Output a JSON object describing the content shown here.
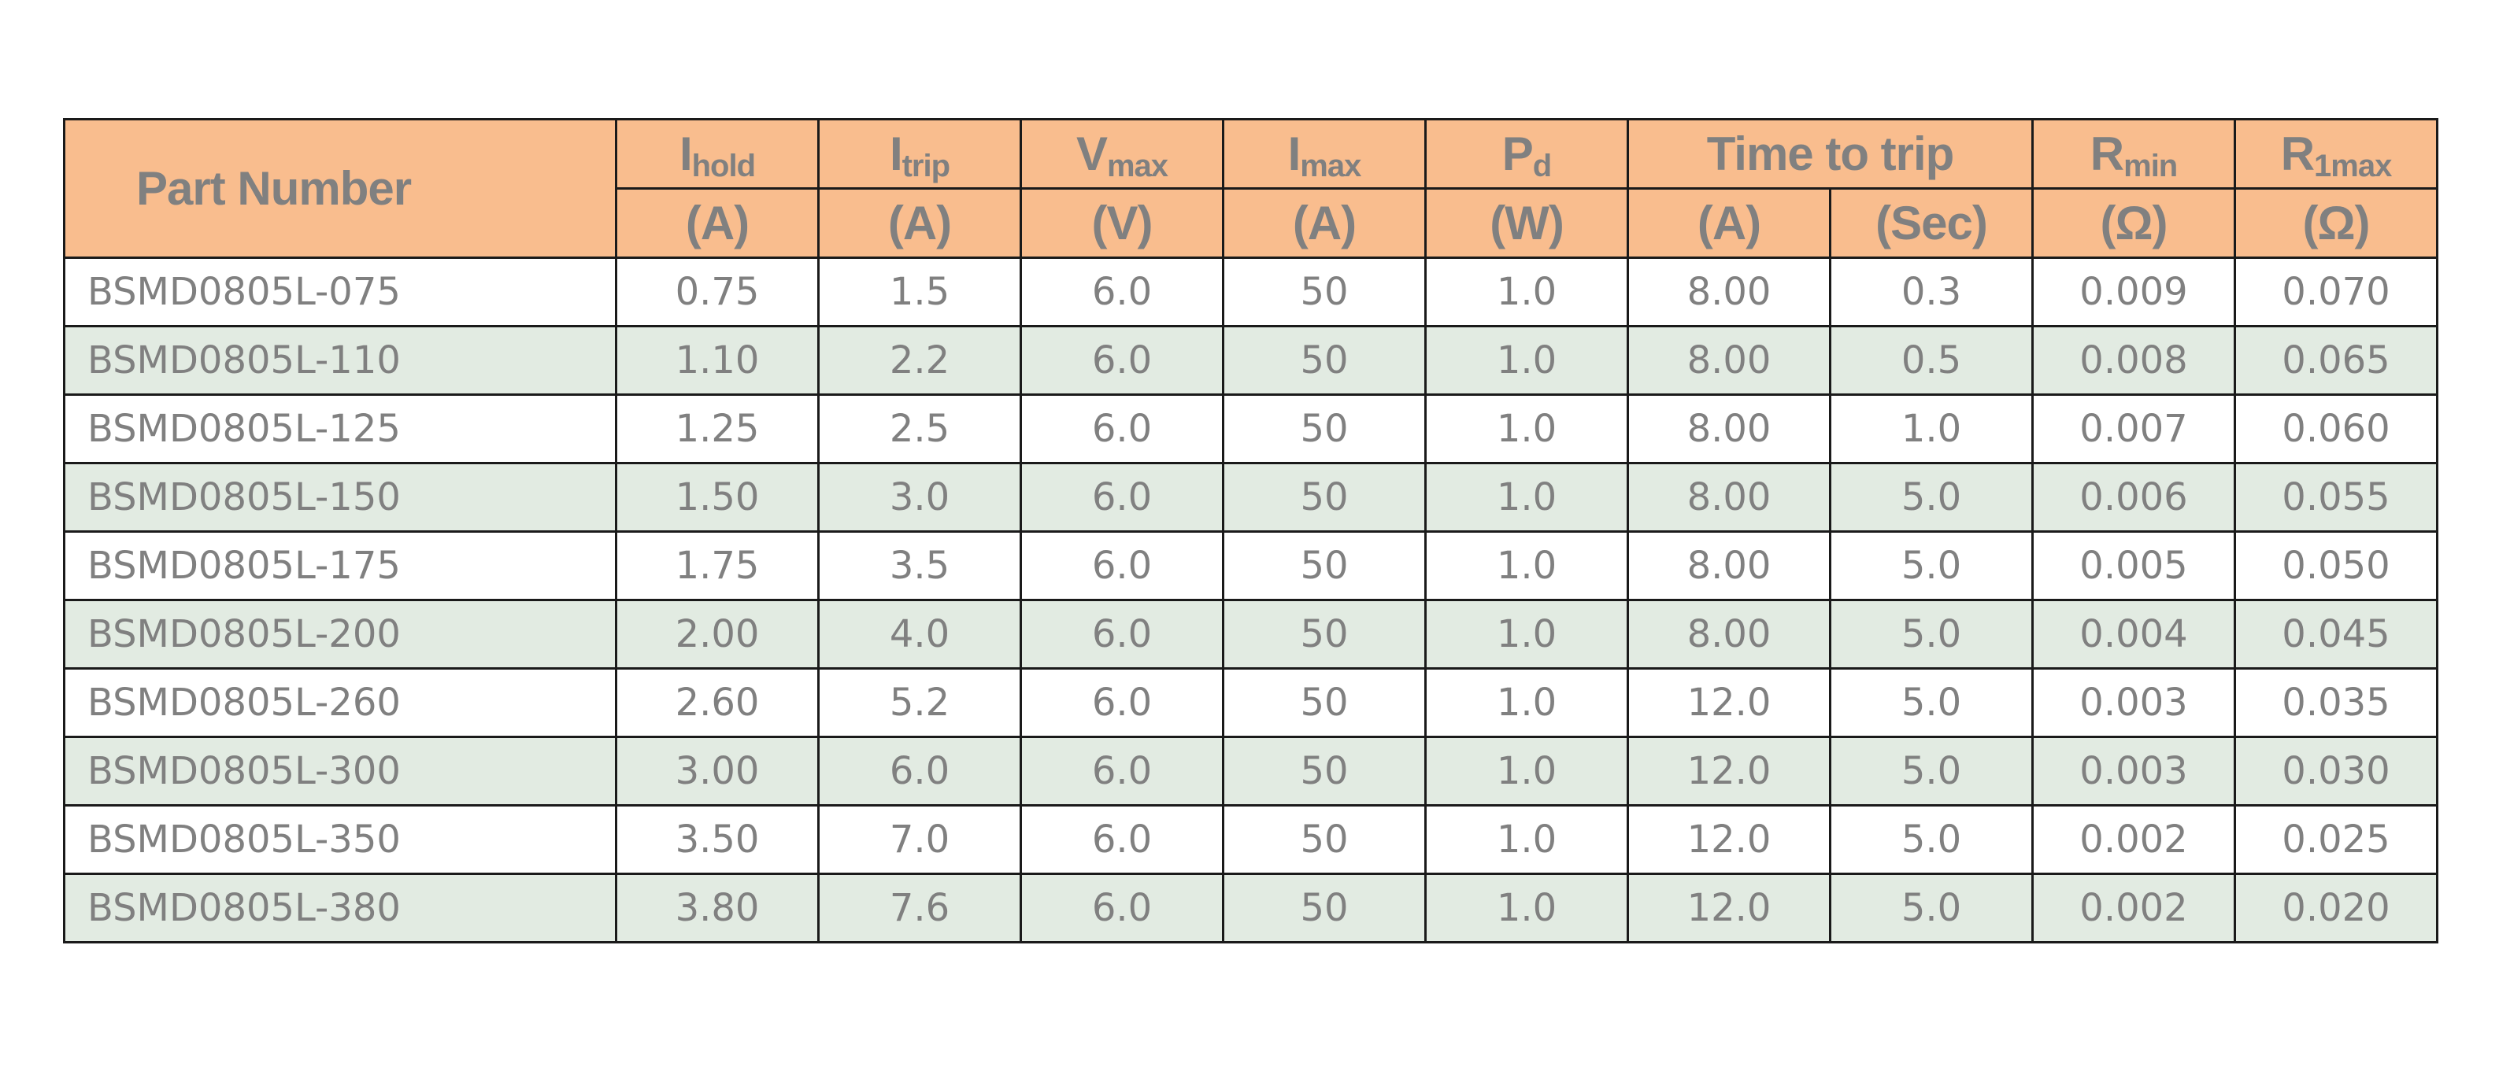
{
  "table": {
    "headers": {
      "part_number": "Part Number",
      "ihold": {
        "main": "I",
        "sub": "hold",
        "unit": "(A)"
      },
      "itrip": {
        "main": "I",
        "sub": "trip",
        "unit": "(A)"
      },
      "vmax": {
        "main": "V",
        "sub": "max",
        "unit": "(V)"
      },
      "imax": {
        "main": "I",
        "sub": "max",
        "unit": "(A)"
      },
      "pd": {
        "main": "P",
        "sub": "d",
        "unit": "(W)"
      },
      "time_to_trip": {
        "label": "Time to trip",
        "unit_a": "(A)",
        "unit_sec": "(Sec)"
      },
      "rmin": {
        "main": "R",
        "sub": "min",
        "unit": "(Ω)"
      },
      "r1max": {
        "main": "R",
        "sub": "1max",
        "unit": "(Ω)"
      }
    },
    "rows": [
      [
        "BSMD0805L-075",
        "0.75",
        "1.5",
        "6.0",
        "50",
        "1.0",
        "8.00",
        "0.3",
        "0.009",
        "0.070"
      ],
      [
        "BSMD0805L-110",
        "1.10",
        "2.2",
        "6.0",
        "50",
        "1.0",
        "8.00",
        "0.5",
        "0.008",
        "0.065"
      ],
      [
        "BSMD0805L-125",
        "1.25",
        "2.5",
        "6.0",
        "50",
        "1.0",
        "8.00",
        "1.0",
        "0.007",
        "0.060"
      ],
      [
        "BSMD0805L-150",
        "1.50",
        "3.0",
        "6.0",
        "50",
        "1.0",
        "8.00",
        "5.0",
        "0.006",
        "0.055"
      ],
      [
        "BSMD0805L-175",
        "1.75",
        "3.5",
        "6.0",
        "50",
        "1.0",
        "8.00",
        "5.0",
        "0.005",
        "0.050"
      ],
      [
        "BSMD0805L-200",
        "2.00",
        "4.0",
        "6.0",
        "50",
        "1.0",
        "8.00",
        "5.0",
        "0.004",
        "0.045"
      ],
      [
        "BSMD0805L-260",
        "2.60",
        "5.2",
        "6.0",
        "50",
        "1.0",
        "12.0",
        "5.0",
        "0.003",
        "0.035"
      ],
      [
        "BSMD0805L-300",
        "3.00",
        "6.0",
        "6.0",
        "50",
        "1.0",
        "12.0",
        "5.0",
        "0.003",
        "0.030"
      ],
      [
        "BSMD0805L-350",
        "3.50",
        "7.0",
        "6.0",
        "50",
        "1.0",
        "12.0",
        "5.0",
        "0.002",
        "0.025"
      ],
      [
        "BSMD0805L-380",
        "3.80",
        "7.6",
        "6.0",
        "50",
        "1.0",
        "12.0",
        "5.0",
        "0.002",
        "0.020"
      ]
    ]
  },
  "colors": {
    "header_background": "#f9bd8e",
    "alternate_row_background": "#e2ebe2",
    "text": "#808080",
    "border": "#1a1a1a"
  }
}
